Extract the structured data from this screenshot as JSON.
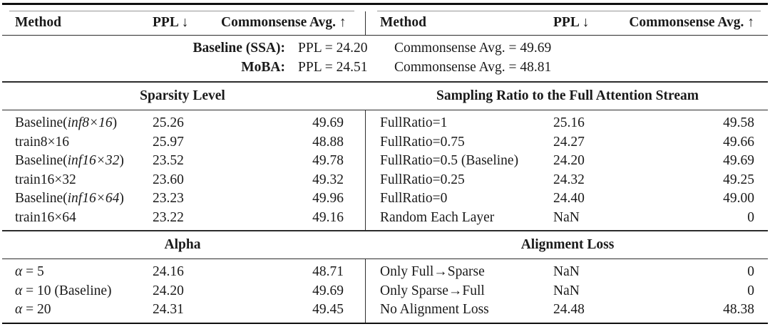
{
  "header": {
    "method": "Method",
    "ppl": "PPL ↓",
    "avg": "Commonsense Avg. ↑"
  },
  "baseline_block": [
    {
      "label": "Baseline (SSA):",
      "ppl": "PPL = 24.20",
      "avg": "Commonsense Avg. = 49.69"
    },
    {
      "label": "MoBA:",
      "ppl": "PPL = 24.51",
      "avg": "Commonsense Avg. = 48.81"
    }
  ],
  "sections": [
    {
      "left_title": "Sparsity Level",
      "right_title": "Sampling Ratio to the Full Attention Stream",
      "left_rows": [
        {
          "m_pre": "Baseline(",
          "m_it": "inf8×16",
          "m_post": ")",
          "ppl": "25.26",
          "avg": "49.69"
        },
        {
          "m_pre": "train8×16",
          "m_it": "",
          "m_post": "",
          "ppl": "25.97",
          "avg": "48.88"
        },
        {
          "m_pre": "Baseline(",
          "m_it": "inf16×32",
          "m_post": ")",
          "ppl": "23.52",
          "avg": "49.78"
        },
        {
          "m_pre": "train16×32",
          "m_it": "",
          "m_post": "",
          "ppl": "23.60",
          "avg": "49.32"
        },
        {
          "m_pre": "Baseline(",
          "m_it": "inf16×64",
          "m_post": ")",
          "ppl": "23.23",
          "avg": "49.96"
        },
        {
          "m_pre": "train16×64",
          "m_it": "",
          "m_post": "",
          "ppl": "23.22",
          "avg": "49.16"
        }
      ],
      "right_rows": [
        {
          "m_pre": "FullRatio=1",
          "m_it": "",
          "m_post": "",
          "ppl": "25.16",
          "avg": "49.58"
        },
        {
          "m_pre": "FullRatio=0.75",
          "m_it": "",
          "m_post": "",
          "ppl": "24.27",
          "avg": "49.66"
        },
        {
          "m_pre": "FullRatio=0.5 (Baseline)",
          "m_it": "",
          "m_post": "",
          "ppl": "24.20",
          "avg": "49.69"
        },
        {
          "m_pre": "FullRatio=0.25",
          "m_it": "",
          "m_post": "",
          "ppl": "24.32",
          "avg": "49.25"
        },
        {
          "m_pre": "FullRatio=0",
          "m_it": "",
          "m_post": "",
          "ppl": "24.40",
          "avg": "49.00"
        },
        {
          "m_pre": "Random Each Layer",
          "m_it": "",
          "m_post": "",
          "ppl": "NaN",
          "avg": "0"
        }
      ]
    },
    {
      "left_title": "Alpha",
      "right_title": "Alignment Loss",
      "left_rows": [
        {
          "m_pre": "",
          "m_it": "α",
          "m_post": " = 5",
          "ppl": "24.16",
          "avg": "48.71"
        },
        {
          "m_pre": "",
          "m_it": "α",
          "m_post": " = 10 (Baseline)",
          "ppl": "24.20",
          "avg": "49.69"
        },
        {
          "m_pre": "",
          "m_it": "α",
          "m_post": " = 20",
          "ppl": "24.31",
          "avg": "49.45"
        }
      ],
      "right_rows": [
        {
          "m_pre": "Only Full→Sparse",
          "m_it": "",
          "m_post": "",
          "ppl": "NaN",
          "avg": "0"
        },
        {
          "m_pre": "Only Sparse→Full",
          "m_it": "",
          "m_post": "",
          "ppl": "NaN",
          "avg": "0"
        },
        {
          "m_pre": "No Alignment Loss",
          "m_it": "",
          "m_post": "",
          "ppl": "24.48",
          "avg": "48.38"
        }
      ]
    }
  ],
  "colors": {
    "background": "#ffffff",
    "text": "#1a1a1a",
    "rule_heavy": "#101010",
    "rule_mid": "#2b2b2b",
    "rule_light": "#979797"
  }
}
